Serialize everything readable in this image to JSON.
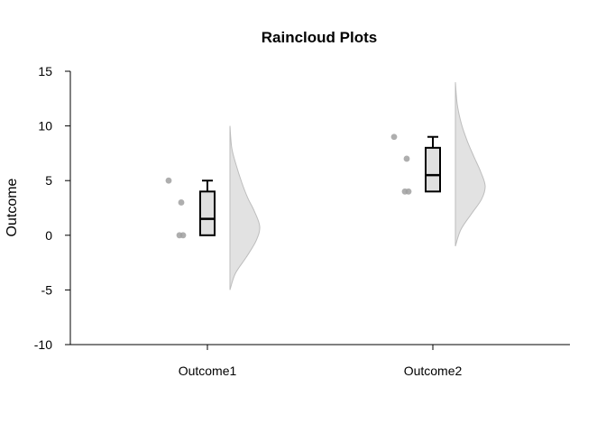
{
  "chart_data": {
    "type": "raincloud",
    "title": "Raincloud Plots",
    "xlabel": "",
    "ylabel": "Outcome",
    "ylim": [
      -10,
      15
    ],
    "yticks": [
      -10,
      -5,
      0,
      5,
      10,
      15
    ],
    "ytick_labels": [
      "-10",
      "-5",
      "0",
      "5",
      "10",
      "15"
    ],
    "categories": [
      "Outcome1",
      "Outcome2"
    ],
    "grid": false,
    "colors": {
      "point": "#a0a0a0",
      "box_fill": "#e0e0e0",
      "cloud_fill": "#e2e2e2",
      "cloud_stroke": "#bdbdbd"
    },
    "groups": [
      {
        "name": "Outcome1",
        "points": [
          5,
          3,
          0,
          0
        ],
        "box": {
          "min": 0,
          "q1": 0,
          "median": 1.5,
          "q3": 4,
          "max": 5
        },
        "density": {
          "y_min": -5,
          "y_max": 10,
          "mode": 0.8,
          "levels": [
            -5,
            -3.5,
            -2,
            -0.5,
            0.8,
            2.2,
            3.4,
            4.8,
            6.5,
            8,
            10
          ],
          "widths": [
            0.0,
            0.18,
            0.55,
            0.88,
            1.0,
            0.82,
            0.6,
            0.4,
            0.2,
            0.06,
            0.0
          ]
        }
      },
      {
        "name": "Outcome2",
        "points": [
          9,
          7,
          4,
          4
        ],
        "box": {
          "min": 4,
          "q1": 4,
          "median": 5.5,
          "q3": 8,
          "max": 9
        },
        "density": {
          "y_min": -1,
          "y_max": 14,
          "mode": 4.5,
          "levels": [
            -1,
            0.5,
            2,
            3.3,
            4.5,
            5.8,
            7.2,
            8.6,
            10.2,
            12,
            14
          ],
          "widths": [
            0.0,
            0.18,
            0.55,
            0.88,
            1.0,
            0.85,
            0.62,
            0.4,
            0.2,
            0.06,
            0.0
          ]
        }
      }
    ]
  }
}
